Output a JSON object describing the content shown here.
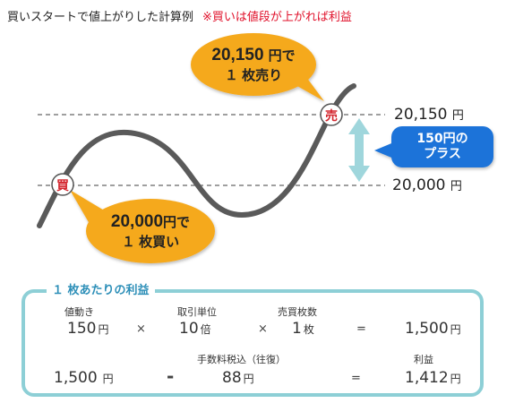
{
  "header": {
    "title": "買いスタートで値上がりした計算例",
    "note": "※買いは値段が上がれば利益"
  },
  "diagram": {
    "sell_marker": "売",
    "buy_marker": "買",
    "sell_bubble": {
      "price": "20,150",
      "line1_suffix": "円で",
      "line2": "１ 枚売り"
    },
    "buy_bubble": {
      "price": "20,000",
      "line1_suffix": "円で",
      "line2": "１ 枚買い"
    },
    "upper_price": {
      "value": "20,150",
      "unit": "円"
    },
    "lower_price": {
      "value": "20,000",
      "unit": "円"
    },
    "plus_callout": {
      "line1": "150円の",
      "line2": "プラス"
    },
    "colors": {
      "bubble": "#f5a91f",
      "curve": "#5a5a5a",
      "arrow": "#9fd6dc",
      "callout": "#1a73d9",
      "marker": "#d4262e"
    }
  },
  "calculation": {
    "title": "１ 枚あたりの利益",
    "row1": {
      "price_move": {
        "label": "値動き",
        "value": "150",
        "unit": "円"
      },
      "op1": "×",
      "multiplier": {
        "label": "取引単位",
        "value": "10",
        "unit": "倍"
      },
      "op2": "×",
      "quantity": {
        "label": "売買枚数",
        "value": "1",
        "unit": "枚"
      },
      "op3": "=",
      "result": {
        "value": "1,500",
        "unit": "円"
      }
    },
    "row2": {
      "gross": {
        "value": "1,500",
        "unit": "円"
      },
      "op1": "-",
      "fee": {
        "label": "手数料税込（往復）",
        "value": "88",
        "unit": "円"
      },
      "op2": "=",
      "profit": {
        "label": "利益",
        "value": "1,412",
        "unit": "円"
      }
    }
  }
}
